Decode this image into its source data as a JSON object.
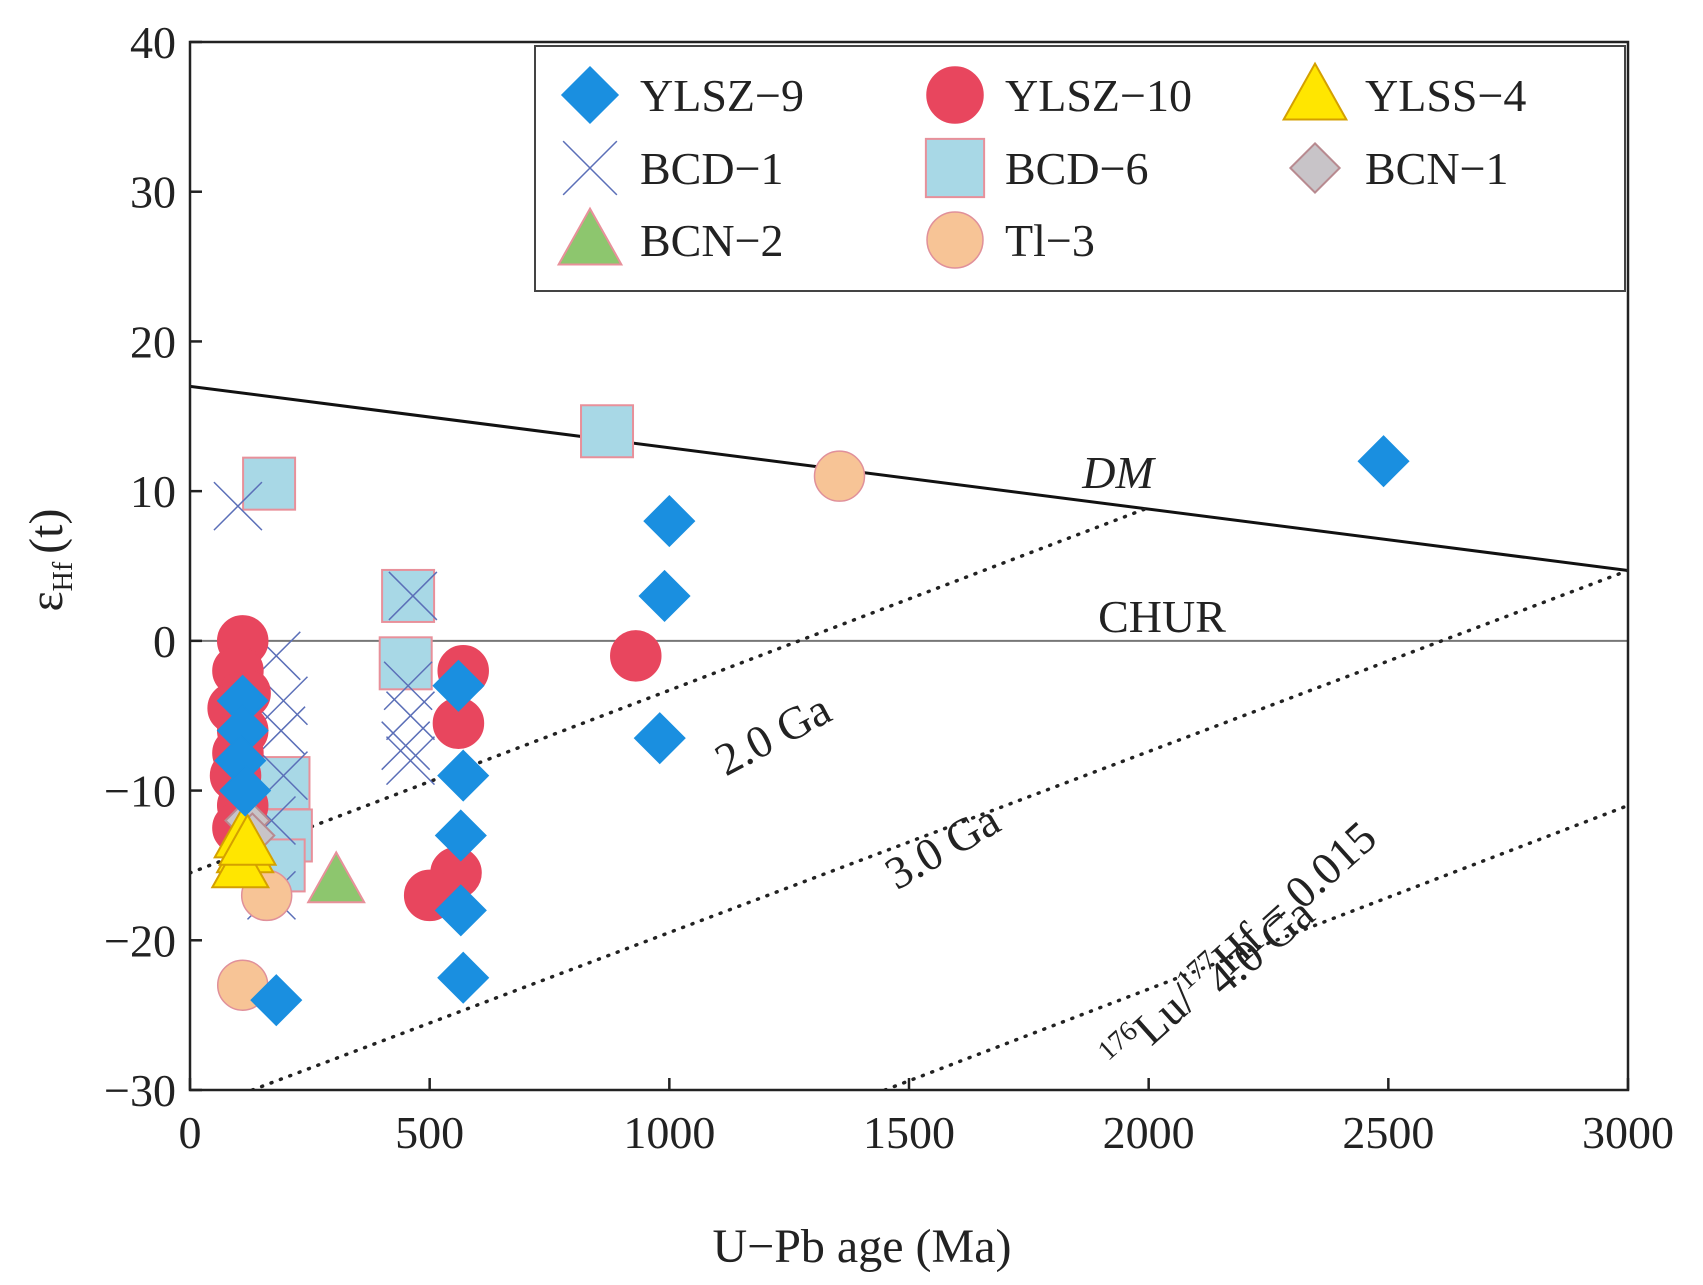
{
  "chart_data": {
    "type": "scatter",
    "xlabel": "U−Pb age (Ma)",
    "ylabel_main": "ε",
    "ylabel_sub": "Hf",
    "ylabel_tail": "(t)",
    "xlim": [
      0,
      3000
    ],
    "ylim": [
      -30,
      40
    ],
    "x_ticks": [
      0,
      500,
      1000,
      1500,
      2000,
      2500,
      3000
    ],
    "y_ticks": [
      -30,
      -20,
      -10,
      0,
      10,
      20,
      30,
      40
    ],
    "x_tick_labels": [
      "0",
      "500",
      "1000",
      "1500",
      "2000",
      "2500",
      "3000"
    ],
    "y_tick_labels": [
      "−30",
      "−20",
      "−10",
      "0",
      "10",
      "20",
      "30",
      "40"
    ],
    "grid": false,
    "legend_position": "top-right",
    "reference_lines": [
      {
        "label": "DM",
        "style": "solid",
        "points": [
          [
            0,
            17
          ],
          [
            3000,
            4.7
          ]
        ]
      },
      {
        "label": "CHUR",
        "style": "solid-thin",
        "points": [
          [
            0,
            0
          ],
          [
            3000,
            0
          ]
        ]
      },
      {
        "label": "2.0 Ga",
        "style": "dotted",
        "points": [
          [
            0,
            -15.5
          ],
          [
            2000,
            8.9
          ]
        ]
      },
      {
        "label": "3.0 Ga",
        "style": "dotted",
        "points": [
          [
            130,
            -30
          ],
          [
            3000,
            4.7
          ]
        ]
      },
      {
        "label": "4.0 Ga",
        "style": "dotted",
        "points": [
          [
            1450,
            -30
          ],
          [
            3000,
            -11
          ]
        ]
      }
    ],
    "lu_hf_annotation": {
      "sup1": "176",
      "text1": "Lu/",
      "sup2": "177",
      "text2": "Hf = 0.015"
    },
    "series": [
      {
        "name": "YLSZ-9",
        "label": "YLSZ−9",
        "marker": "diamond",
        "color": "#1a8fe0",
        "stroke": "#1a8fe0",
        "points": [
          [
            2490,
            12
          ],
          [
            1000,
            8
          ],
          [
            990,
            3
          ],
          [
            980,
            -6.5
          ],
          [
            560,
            -3
          ],
          [
            570,
            -9
          ],
          [
            565,
            -13
          ],
          [
            565,
            -18
          ],
          [
            570,
            -22.5
          ],
          [
            180,
            -24
          ],
          [
            110,
            -4
          ],
          [
            110,
            -6
          ],
          [
            105,
            -8
          ],
          [
            115,
            -10
          ]
        ]
      },
      {
        "name": "YLSZ-10",
        "label": "YLSZ−10",
        "marker": "circle",
        "color": "#e8465e",
        "stroke": "#e8465e",
        "points": [
          [
            930,
            -1
          ],
          [
            570,
            -2
          ],
          [
            560,
            -5.5
          ],
          [
            555,
            -15.5
          ],
          [
            500,
            -17
          ],
          [
            110,
            0
          ],
          [
            100,
            -2
          ],
          [
            115,
            -3.5
          ],
          [
            90,
            -4.5
          ],
          [
            110,
            -6
          ],
          [
            100,
            -7.5
          ],
          [
            95,
            -9
          ],
          [
            110,
            -11
          ],
          [
            100,
            -12.5
          ]
        ]
      },
      {
        "name": "YLSS-4",
        "label": "YLSS−4",
        "marker": "triangle",
        "color": "#ffe600",
        "stroke": "#d4a000",
        "points": [
          [
            110,
            -13
          ],
          [
            115,
            -14
          ],
          [
            105,
            -15
          ],
          [
            120,
            -13.5
          ]
        ]
      },
      {
        "name": "BCD-1",
        "label": "BCD−1",
        "marker": "cross",
        "color": "#5b6fb8",
        "stroke": "#5b6fb8",
        "points": [
          [
            100,
            9
          ],
          [
            180,
            -1
          ],
          [
            195,
            -4
          ],
          [
            190,
            -6
          ],
          [
            195,
            -9
          ],
          [
            170,
            -12
          ],
          [
            170,
            -17
          ],
          [
            465,
            3
          ],
          [
            455,
            -3
          ],
          [
            460,
            -5
          ],
          [
            450,
            -7
          ],
          [
            460,
            -8
          ]
        ]
      },
      {
        "name": "BCD-6",
        "label": "BCD−6",
        "marker": "square",
        "color": "#a8d8e6",
        "stroke": "#e8909a",
        "points": [
          [
            870,
            14
          ],
          [
            165,
            10.5
          ],
          [
            455,
            3
          ],
          [
            450,
            -1.5
          ],
          [
            195,
            -9.5
          ],
          [
            200,
            -13
          ],
          [
            185,
            -15
          ]
        ]
      },
      {
        "name": "BCN-1",
        "label": "BCN−1",
        "marker": "diamond-small",
        "color": "#c8c4c8",
        "stroke": "#b88a90",
        "points": [
          [
            120,
            -12
          ],
          [
            130,
            -13
          ]
        ]
      },
      {
        "name": "BCN-2",
        "label": "BCN−2",
        "marker": "triangle",
        "color": "#8dc66e",
        "stroke": "#e8909a",
        "points": [
          [
            305,
            -16
          ]
        ]
      },
      {
        "name": "Tl-3",
        "label": "Tl−3",
        "marker": "circle",
        "color": "#f7c496",
        "stroke": "#e0909a",
        "points": [
          [
            1355,
            11
          ],
          [
            160,
            -17
          ],
          [
            110,
            -23
          ]
        ]
      }
    ]
  }
}
